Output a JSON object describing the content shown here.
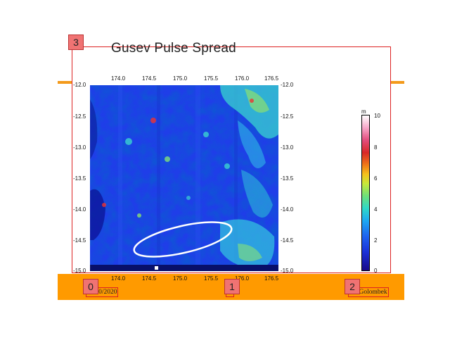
{
  "slide": {
    "title": "Gusev Pulse Spread",
    "date": "11/30/2020",
    "page_glyph": "□",
    "author": "M. Golombek",
    "markers": [
      "0",
      "1",
      "2",
      "3"
    ]
  },
  "figure": {
    "x_ticks": [
      "174.0",
      "174.5",
      "175.0",
      "175.5",
      "176.0",
      "176.5"
    ],
    "y_ticks": [
      "-12.0",
      "-12.5",
      "-13.0",
      "-13.5",
      "-14.0",
      "-14.5",
      "-15.0"
    ],
    "colorbar_unit": "m",
    "colorbar_ticks": [
      "10",
      "8",
      "6",
      "4",
      "2",
      "0"
    ]
  },
  "colors": {
    "orange": "#ff9a00",
    "marker_fill": "#f07373",
    "outline_red": "#dd2222",
    "map_blue": "#1f3ee8"
  }
}
